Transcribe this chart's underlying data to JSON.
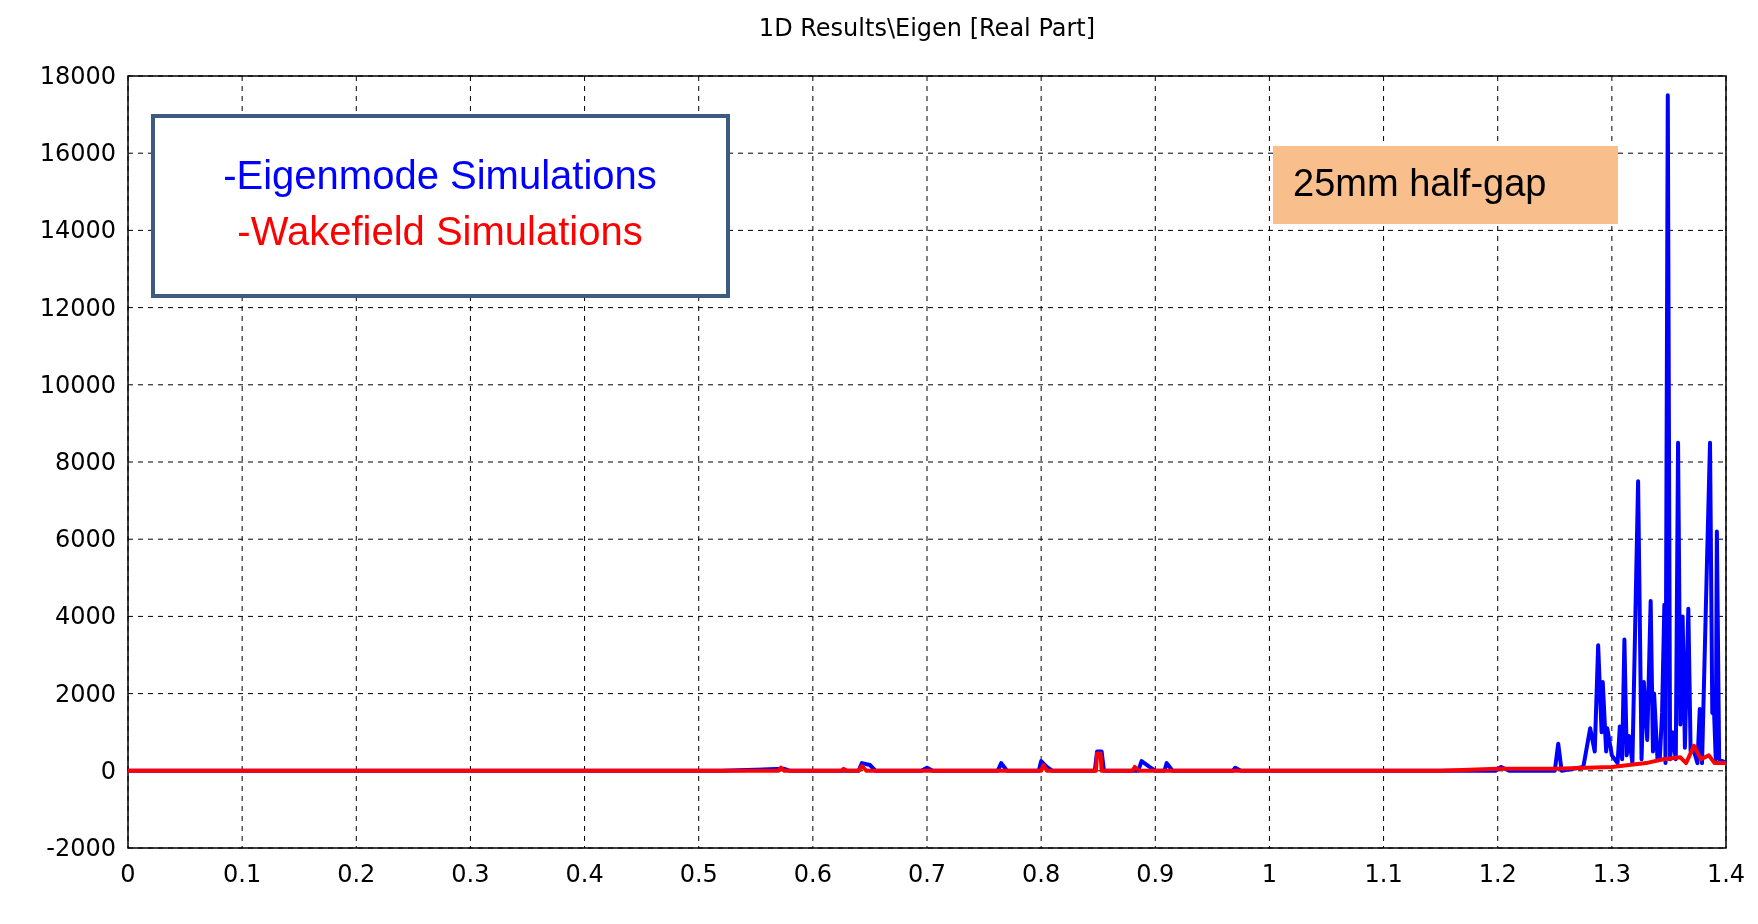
{
  "chart_data": {
    "type": "line",
    "title": "1D Results\\Eigen [Real Part]",
    "xlim": [
      0,
      1.4
    ],
    "xticks": [
      0,
      0.1,
      0.2,
      0.3,
      0.4,
      0.5,
      0.6,
      0.7,
      0.8,
      0.9,
      1,
      1.1,
      1.2,
      1.3,
      1.4
    ],
    "ylim": [
      -2000,
      18000
    ],
    "yticks": [
      -2000,
      0,
      2000,
      4000,
      6000,
      8000,
      10000,
      12000,
      14000,
      16000,
      18000
    ],
    "grid": true,
    "legend": "top left",
    "line_style": "solid",
    "annotations": [
      "25mm half-gap"
    ],
    "series": [
      {
        "name": "-Eigenmode Simulations",
        "color": "#0000ff",
        "x": [
          0,
          0.52,
          0.575,
          0.58,
          0.64,
          0.643,
          0.65,
          0.655,
          0.695,
          0.7,
          0.705,
          0.762,
          0.765,
          0.77,
          0.798,
          0.8,
          0.805,
          0.81,
          0.847,
          0.849,
          0.853,
          0.855,
          0.885,
          0.888,
          0.895,
          0.9,
          0.908,
          0.91,
          0.915,
          0.968,
          0.97,
          0.975,
          1.198,
          1.203,
          1.21,
          1.25,
          1.253,
          1.256,
          1.275,
          1.281,
          1.285,
          1.288,
          1.291,
          1.292,
          1.295,
          1.296,
          1.3,
          1.305,
          1.307,
          1.309,
          1.311,
          1.313,
          1.315,
          1.318,
          1.323,
          1.326,
          1.328,
          1.331,
          1.334,
          1.336,
          1.337,
          1.34,
          1.342,
          1.344,
          1.346,
          1.347,
          1.349,
          1.351,
          1.353,
          1.356,
          1.358,
          1.36,
          1.362,
          1.364,
          1.367,
          1.369,
          1.372,
          1.375,
          1.377,
          1.379,
          1.383,
          1.386,
          1.388,
          1.389,
          1.391,
          1.392,
          1.394,
          1.4
        ],
        "values": [
          0,
          0,
          50,
          0,
          0,
          200,
          150,
          0,
          0,
          80,
          0,
          0,
          200,
          0,
          0,
          250,
          100,
          0,
          0,
          500,
          500,
          0,
          0,
          250,
          100,
          0,
          0,
          200,
          0,
          0,
          80,
          0,
          0,
          100,
          0,
          0,
          700,
          0,
          100,
          1100,
          500,
          3250,
          1000,
          2300,
          500,
          1100,
          400,
          200,
          1150,
          300,
          3400,
          400,
          900,
          200,
          7500,
          300,
          2300,
          800,
          4400,
          500,
          2000,
          300,
          300,
          1500,
          4300,
          200,
          17500,
          300,
          1000,
          300,
          8500,
          1200,
          4000,
          600,
          4200,
          500,
          500,
          200,
          1600,
          200,
          5000,
          8500,
          1500,
          2000,
          300,
          6200,
          300,
          200
        ]
      },
      {
        "name": "-Wakefield Simulations",
        "color": "#ff0000",
        "x": [
          0,
          0.57,
          0.572,
          0.575,
          0.625,
          0.627,
          0.63,
          0.64,
          0.643,
          0.647,
          0.8,
          0.802,
          0.805,
          0.848,
          0.849,
          0.852,
          0.853,
          0.88,
          0.882,
          0.886,
          1.15,
          1.2,
          1.25,
          1.3,
          1.33,
          1.345,
          1.36,
          1.365,
          1.372,
          1.378,
          1.385,
          1.39,
          1.4
        ],
        "values": [
          0,
          0,
          80,
          0,
          0,
          50,
          0,
          0,
          120,
          0,
          0,
          150,
          0,
          0,
          450,
          450,
          0,
          0,
          100,
          0,
          0,
          50,
          50,
          100,
          200,
          300,
          350,
          200,
          650,
          300,
          400,
          200,
          200
        ]
      }
    ]
  }
}
